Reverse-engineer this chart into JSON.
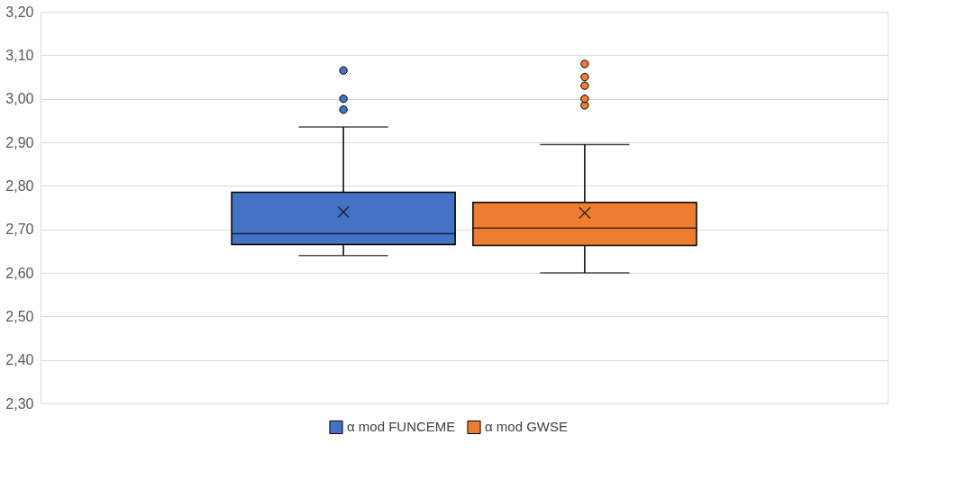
{
  "chart_data": {
    "type": "box",
    "categories": [
      null
    ],
    "series": [
      {
        "name": "α mod FUNCEME",
        "color": "#4472c4",
        "boxes": [
          {
            "low": 2.64,
            "q1": 2.665,
            "median": 2.69,
            "q3": 2.785,
            "high": 2.935,
            "mean": 2.74,
            "outliers": [
              2.975,
              3.0,
              3.065
            ]
          }
        ]
      },
      {
        "name": "α mod GWSE",
        "color": "#ed7d31",
        "boxes": [
          {
            "low": 2.6,
            "q1": 2.663,
            "median": 2.703,
            "q3": 2.762,
            "high": 2.895,
            "mean": 2.738,
            "outliers": [
              2.985,
              3.0,
              3.03,
              3.05,
              3.08
            ]
          }
        ]
      }
    ],
    "ylim": [
      2.3,
      3.2
    ],
    "yticks": [
      {
        "value": 2.3,
        "label": "2,30"
      },
      {
        "value": 2.4,
        "label": "2,40"
      },
      {
        "value": 2.5,
        "label": "2,50"
      },
      {
        "value": 2.6,
        "label": "2,60"
      },
      {
        "value": 2.7,
        "label": "2,70"
      },
      {
        "value": 2.8,
        "label": "2,80"
      },
      {
        "value": 2.9,
        "label": "2,90"
      },
      {
        "value": 3.0,
        "label": "3,00"
      },
      {
        "value": 3.1,
        "label": "3,10"
      },
      {
        "value": 3.2,
        "label": "3,20"
      }
    ],
    "grid": "y",
    "legend": "bottom",
    "tick_labels": "y"
  }
}
